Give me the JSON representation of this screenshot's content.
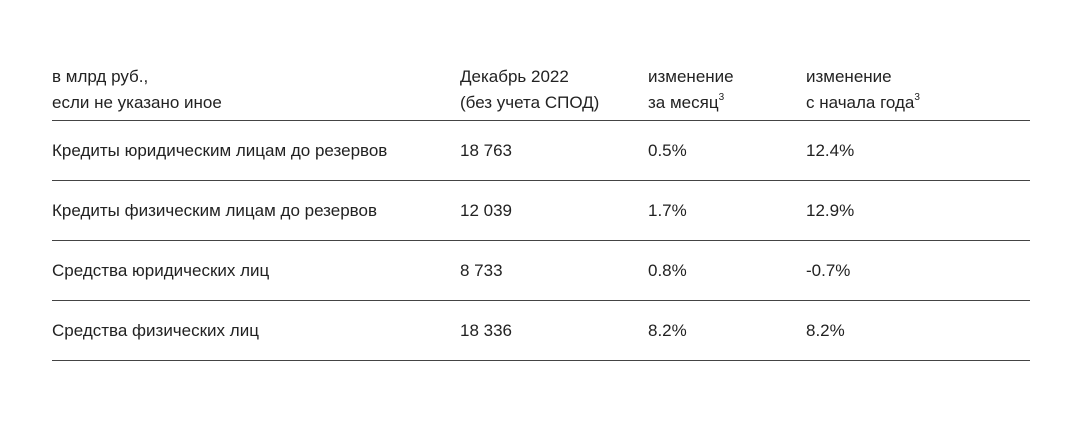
{
  "table": {
    "header": [
      {
        "lines": [
          "в млрд руб.,",
          "если не указано иное"
        ]
      },
      {
        "lines": [
          "Декабрь 2022",
          "(без учета СПОД)"
        ]
      },
      {
        "lines": [
          "изменение",
          "за месяц"
        ],
        "note": "3"
      },
      {
        "lines": [
          "изменение",
          "с начала года"
        ],
        "note": "3"
      }
    ],
    "rows": [
      [
        "Кредиты юридическим лицам до резервов",
        "18 763",
        "0.5%",
        "12.4%"
      ],
      [
        "Кредиты физическим лицам до резервов",
        "12 039",
        "1.7%",
        "12.9%"
      ],
      [
        "Средства юридических лиц",
        "8 733",
        "0.8%",
        "-0.7%"
      ],
      [
        "Средства физических лиц",
        "18 336",
        "8.2%",
        "8.2%"
      ]
    ]
  }
}
